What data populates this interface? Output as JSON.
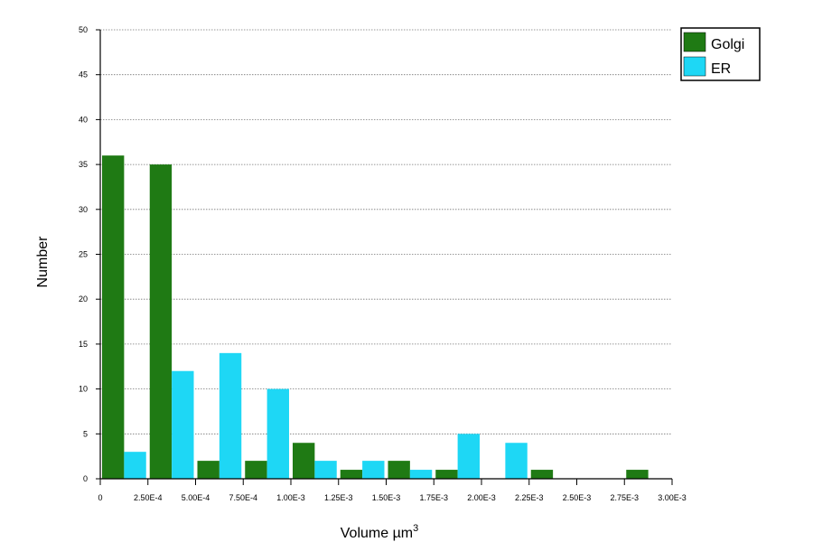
{
  "chart_data": {
    "type": "bar",
    "title": "",
    "xlabel": "Volume µm",
    "xlabel_sup": "3",
    "ylabel": "Number",
    "ylim": [
      0,
      50
    ],
    "yticks": [
      0,
      5,
      10,
      15,
      20,
      25,
      30,
      35,
      40,
      45,
      50
    ],
    "xlim": [
      0,
      0.003
    ],
    "x_tick_values": [
      0,
      0.00025,
      0.0005,
      0.00075,
      0.001,
      0.00125,
      0.0015,
      0.00175,
      0.002,
      0.00225,
      0.0025,
      0.00275,
      0.003
    ],
    "x_tick_labels": [
      "0",
      "2.50E-4",
      "5.00E-4",
      "7.50E-4",
      "1.00E-3",
      "1.25E-3",
      "1.50E-3",
      "1.75E-3",
      "2.00E-3",
      "2.25E-3",
      "2.50E-3",
      "2.75E-3",
      "3.00E-3"
    ],
    "bin_width": 0.00025,
    "bin_starts": [
      0,
      0.00025,
      0.0005,
      0.00075,
      0.001,
      0.00125,
      0.0015,
      0.00175,
      0.002,
      0.00225,
      0.0025,
      0.00275
    ],
    "grid": true,
    "legend_position": "top-right",
    "series": [
      {
        "name": "Golgi",
        "color": "#1f7a14",
        "values": [
          36,
          35,
          2,
          2,
          4,
          1,
          2,
          1,
          0,
          1,
          0,
          1
        ]
      },
      {
        "name": "ER",
        "color": "#1ed7f5",
        "values": [
          3,
          12,
          14,
          10,
          2,
          2,
          1,
          5,
          4,
          0,
          0,
          0
        ]
      }
    ]
  }
}
